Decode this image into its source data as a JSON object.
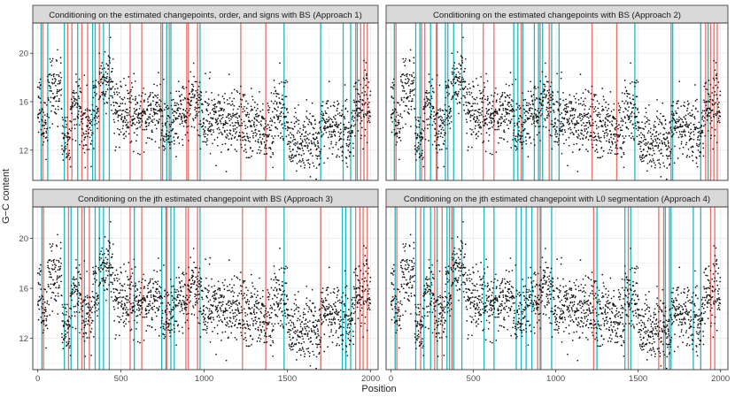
{
  "chart_data": {
    "type": "scatter",
    "xlabel": "Position",
    "ylabel": "G−C content",
    "xlim": [
      -30,
      2045
    ],
    "ylim": [
      9.5,
      22.5
    ],
    "x_ticks": [
      0,
      500,
      1000,
      1500,
      2000
    ],
    "y_ticks": [
      12,
      16,
      20
    ],
    "colors": {
      "points": "#111111",
      "teal": "#1fb8c1",
      "red": "#e8706b",
      "strip": "#d9d9d9",
      "panel_border": "#333333",
      "grid": "#ebebeb"
    },
    "signal": {
      "n": 2000,
      "segments": [
        {
          "start": 0,
          "end": 22,
          "mean": 16.0
        },
        {
          "start": 22,
          "end": 60,
          "mean": 14.0
        },
        {
          "start": 60,
          "end": 145,
          "mean": 17.0
        },
        {
          "start": 145,
          "end": 200,
          "mean": 13.0
        },
        {
          "start": 200,
          "end": 265,
          "mean": 15.6
        },
        {
          "start": 265,
          "end": 330,
          "mean": 14.0
        },
        {
          "start": 330,
          "end": 370,
          "mean": 15.8
        },
        {
          "start": 370,
          "end": 455,
          "mean": 17.8
        },
        {
          "start": 455,
          "end": 560,
          "mean": 15.2
        },
        {
          "start": 560,
          "end": 745,
          "mean": 15.0
        },
        {
          "start": 745,
          "end": 800,
          "mean": 14.2
        },
        {
          "start": 800,
          "end": 900,
          "mean": 14.8
        },
        {
          "start": 900,
          "end": 975,
          "mean": 16.3
        },
        {
          "start": 975,
          "end": 1240,
          "mean": 14.5
        },
        {
          "start": 1240,
          "end": 1420,
          "mean": 13.8
        },
        {
          "start": 1420,
          "end": 1500,
          "mean": 15.5
        },
        {
          "start": 1500,
          "end": 1700,
          "mean": 12.8
        },
        {
          "start": 1700,
          "end": 1850,
          "mean": 14.0
        },
        {
          "start": 1850,
          "end": 1900,
          "mean": 13.0
        },
        {
          "start": 1900,
          "end": 2000,
          "mean": 15.6
        }
      ],
      "noise_sd": 1.3
    },
    "panels": [
      {
        "title": "Conditioning on the estimated changepoints, order, and signs with BS (Approach 1)",
        "teal_lines": [
          20,
          60,
          160,
          240,
          330,
          345,
          395,
          430,
          750,
          775,
          800,
          975,
          1480,
          1700,
          1835,
          1880,
          1920
        ],
        "red_lines": [
          30,
          180,
          205,
          265,
          300,
          370,
          555,
          625,
          740,
          790,
          895,
          905,
          960,
          1220,
          1370,
          1910,
          1940,
          1960,
          1980
        ]
      },
      {
        "title": "Conditioning on the estimated changepoints with BS (Approach 2)",
        "teal_lines": [
          20,
          150,
          175,
          240,
          280,
          330,
          345,
          380,
          430,
          745,
          770,
          800,
          870,
          895,
          920,
          975,
          1020,
          1480,
          1700,
          1710,
          1880,
          1925
        ],
        "red_lines": [
          30,
          185,
          205,
          275,
          560,
          625,
          790,
          905,
          960,
          1220,
          1370,
          1910,
          1940,
          1960,
          1980
        ]
      },
      {
        "title": "Conditioning on the jth estimated changepoint with BS (Approach 3)",
        "teal_lines": [
          25,
          160,
          200,
          240,
          280,
          345,
          370,
          395,
          430,
          580,
          745,
          770,
          800,
          820,
          975,
          1480,
          1700,
          1830,
          1850,
          1880
        ],
        "red_lines": [
          35,
          185,
          265,
          310,
          555,
          625,
          775,
          890,
          905,
          960,
          1230,
          1370,
          1700,
          1910,
          1935,
          1955,
          1980
        ]
      },
      {
        "title": "Conditioning on the jth estimated changepoint with L0 segmentation (Approach 4)",
        "teal_lines": [
          25,
          150,
          200,
          240,
          280,
          340,
          355,
          370,
          380,
          430,
          565,
          625,
          760,
          790,
          820,
          855,
          910,
          975,
          1250,
          1420,
          1455,
          1665,
          1690,
          1700,
          1835,
          1880
        ],
        "red_lines": [
          35,
          180,
          265,
          310,
          370,
          890,
          905,
          1230,
          1440,
          1625,
          1655,
          1940,
          1965
        ]
      }
    ]
  }
}
